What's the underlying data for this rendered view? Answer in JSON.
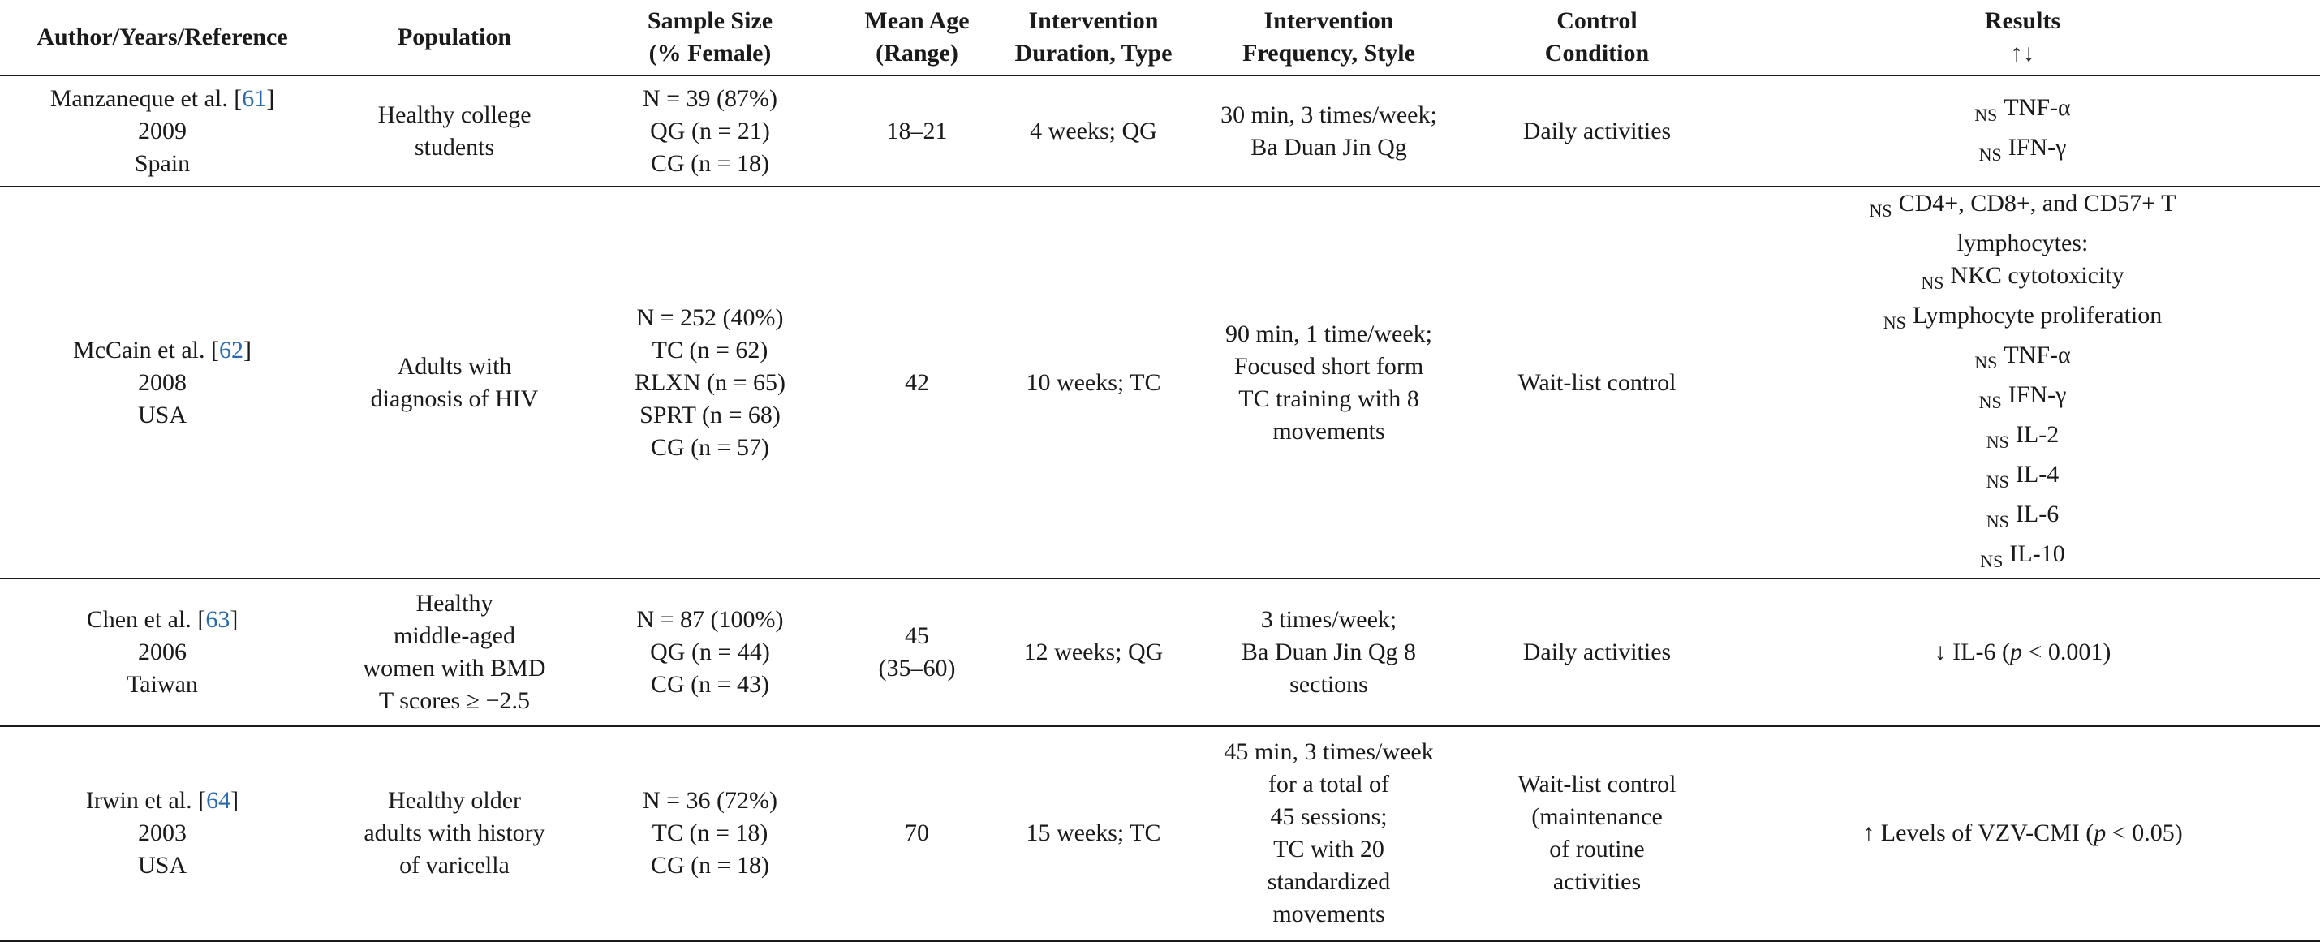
{
  "table": {
    "headers": [
      [
        "Author/Years/Reference"
      ],
      [
        "Population"
      ],
      [
        "Sample Size",
        "(% Female)"
      ],
      [
        "Mean Age",
        "(Range)"
      ],
      [
        "Intervention",
        "Duration, Type"
      ],
      [
        "Intervention",
        "Frequency, Style"
      ],
      [
        "Control",
        "Condition"
      ],
      [
        "Results",
        "↑↓"
      ]
    ],
    "rows": [
      {
        "author": {
          "name": "Manzaneque et al. [",
          "ref": "61",
          "close": "]",
          "year": "2009",
          "country": "Spain"
        },
        "population": [
          "Healthy college",
          "students"
        ],
        "sample": [
          "N = 39 (87%)",
          "QG (n = 21)",
          "CG (n = 18)"
        ],
        "age": [
          "18–21"
        ],
        "duration": "4 weeks; QG",
        "frequency": [
          "30 min, 3 times/week;",
          "Ba Duan Jin Qg"
        ],
        "control": [
          "Daily activities"
        ],
        "results": [
          {
            "prefix": "NS",
            "text": "TNF-α"
          },
          {
            "prefix": "NS",
            "text": "IFN-γ"
          }
        ]
      },
      {
        "author": {
          "name": "McCain et al. [",
          "ref": "62",
          "close": "]",
          "year": "2008",
          "country": "USA"
        },
        "population": [
          "Adults with",
          "diagnosis of HIV"
        ],
        "sample": [
          "N = 252 (40%)",
          "TC (n = 62)",
          "RLXN (n = 65)",
          "SPRT (n = 68)",
          "CG (n = 57)"
        ],
        "age": [
          "42"
        ],
        "duration": "10 weeks; TC",
        "frequency": [
          "90 min, 1 time/week;",
          "Focused short form",
          "TC training with 8",
          "movements"
        ],
        "control": [
          "Wait-list control"
        ],
        "results": [
          {
            "prefix": "NS",
            "text": "CD4+, CD8+, and CD57+ T"
          },
          {
            "prefix": "",
            "text": "lymphocytes:"
          },
          {
            "prefix": "NS",
            "text": "NKC cytotoxicity"
          },
          {
            "prefix": "NS",
            "text": "Lymphocyte proliferation"
          },
          {
            "prefix": "NS",
            "text": "TNF-α"
          },
          {
            "prefix": "NS",
            "text": "IFN-γ"
          },
          {
            "prefix": "NS",
            "text": "IL-2"
          },
          {
            "prefix": "NS",
            "text": "IL-4"
          },
          {
            "prefix": "NS",
            "text": "IL-6"
          },
          {
            "prefix": "NS",
            "text": "IL-10"
          }
        ]
      },
      {
        "author": {
          "name": "Chen et al. [",
          "ref": "63",
          "close": "]",
          "year": "2006",
          "country": "Taiwan"
        },
        "population": [
          "Healthy",
          "middle-aged",
          "women with BMD",
          "T scores ≥ −2.5"
        ],
        "sample": [
          "N = 87 (100%)",
          "QG (n = 44)",
          "CG (n = 43)"
        ],
        "age": [
          "45",
          "(35–60)"
        ],
        "duration": "12 weeks; QG",
        "frequency": [
          "3 times/week;",
          "Ba Duan Jin Qg 8",
          "sections"
        ],
        "control": [
          "Daily activities"
        ],
        "results_p": {
          "text": "↓ IL-6 (",
          "p": "p",
          "rest": " < 0.001)"
        }
      },
      {
        "author": {
          "name": "Irwin et al. [",
          "ref": "64",
          "close": "]",
          "year": "2003",
          "country": "USA"
        },
        "population": [
          "Healthy older",
          "adults with history",
          "of varicella"
        ],
        "sample": [
          "N = 36 (72%)",
          "TC (n = 18)",
          "CG (n = 18)"
        ],
        "age": [
          "70"
        ],
        "duration": "15 weeks; TC",
        "frequency": [
          "45 min, 3 times/week",
          "for a total of",
          "45 sessions;",
          "TC with 20",
          "standardized",
          "movements"
        ],
        "control": [
          "Wait-list control",
          "(maintenance",
          "of routine",
          "activities"
        ],
        "results_p": {
          "text": "↑ Levels of VZV-CMI (",
          "p": "p",
          "rest": " < 0.05)"
        }
      }
    ]
  }
}
